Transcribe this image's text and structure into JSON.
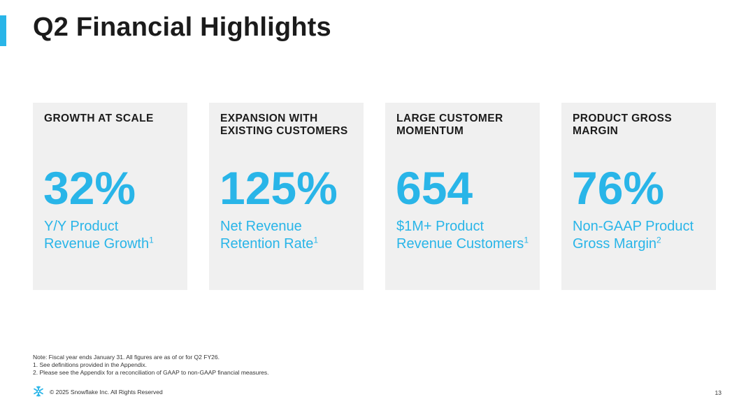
{
  "slide": {
    "title": "Q2 Financial Highlights",
    "accent_color": "#29b5e8"
  },
  "cards": [
    {
      "heading": "GROWTH AT SCALE",
      "metric": "32%",
      "desc_line1": "Y/Y Product",
      "desc_line2": "Revenue Growth",
      "footnote": "1"
    },
    {
      "heading": "EXPANSION WITH EXISTING CUSTOMERS",
      "metric": "125%",
      "desc_line1": "Net Revenue",
      "desc_line2": "Retention Rate",
      "footnote": "1"
    },
    {
      "heading": "LARGE CUSTOMER MOMENTUM",
      "metric": "654",
      "desc_line1": "$1M+ Product",
      "desc_line2": "Revenue Customers",
      "footnote": "1"
    },
    {
      "heading": "PRODUCT GROSS MARGIN",
      "metric": "76%",
      "desc_line1": "Non-GAAP Product",
      "desc_line2": "Gross Margin",
      "footnote": "2"
    }
  ],
  "notes": [
    "Note: Fiscal year ends January 31. All figures are as of or for Q2 FY26.",
    "1. See definitions provided in the Appendix.",
    "2. Please see the Appendix for a reconciliation of GAAP to non-GAAP financial measures."
  ],
  "footer": {
    "logo_icon": "snowflake-icon",
    "copyright": "© 2025 Snowflake Inc. All Rights Reserved",
    "page_number": "13"
  }
}
